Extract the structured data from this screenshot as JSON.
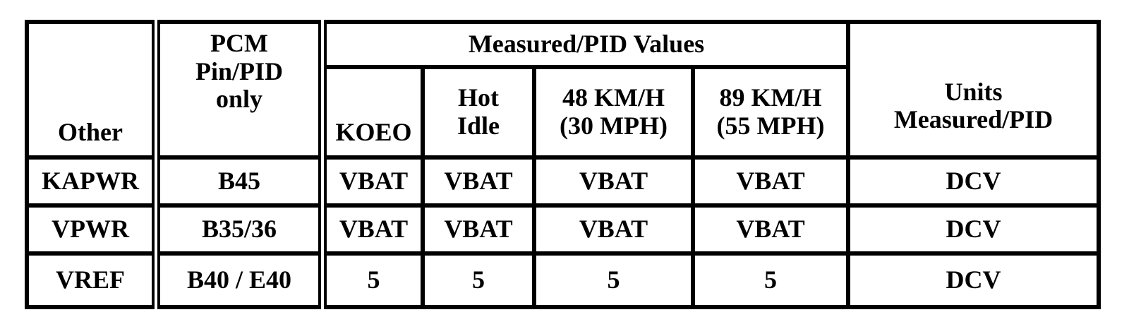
{
  "table": {
    "header": {
      "other": "Other",
      "pcm": "PCM\nPin/PID\nonly",
      "measured": "Measured/PID Values",
      "units": "Units\nMeasured/PID",
      "sub": [
        "KOEO",
        "Hot\nIdle",
        "48 KM/H\n(30 MPH)",
        "89 KM/H\n(55 MPH)"
      ]
    },
    "rows": [
      [
        "KAPWR",
        "B45",
        "VBAT",
        "VBAT",
        "VBAT",
        "VBAT",
        "DCV"
      ],
      [
        "VPWR",
        "B35/36",
        "VBAT",
        "VBAT",
        "VBAT",
        "VBAT",
        "DCV"
      ],
      [
        "VREF",
        "B40 / E40",
        "5",
        "5",
        "5",
        "5",
        "DCV"
      ]
    ]
  }
}
